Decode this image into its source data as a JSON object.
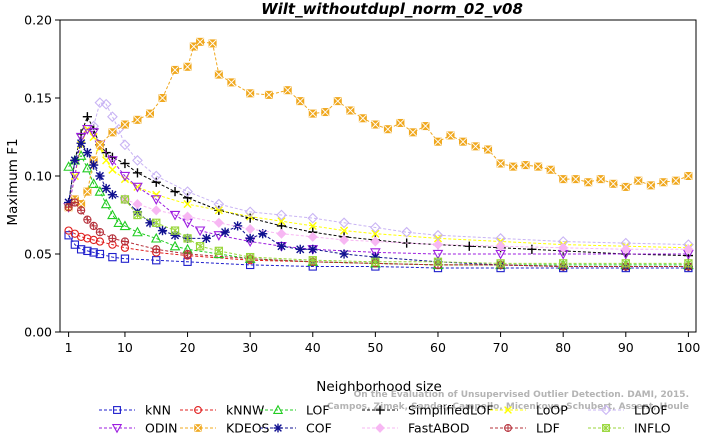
{
  "chart_data": {
    "type": "line",
    "title": "Wilt_withoutdupl_norm_02_v08",
    "xlabel": "Neighborhood size",
    "ylabel": "Maximum F1",
    "xlim": [
      1,
      100
    ],
    "ylim": [
      0,
      0.2
    ],
    "xticks": [
      1,
      10,
      20,
      30,
      40,
      50,
      60,
      70,
      80,
      90,
      100
    ],
    "yticks": [
      0.0,
      0.05,
      0.1,
      0.15,
      0.2
    ],
    "ytick_labels": [
      "0.00",
      "0.05",
      "0.10",
      "0.15",
      "0.20"
    ],
    "grid": false,
    "legend_position": "bottom",
    "watermark": [
      "Campos, Zimek, Sander, Campello, Micenkova, Schubert, Assent, Houle",
      "On the Evaluation of Unsupervised Outlier Detection. DAMI, 2015."
    ],
    "series": [
      {
        "name": "kNN",
        "color": "#1f1fcc",
        "marker": "square",
        "points": [
          [
            1,
            0.062
          ],
          [
            2,
            0.056
          ],
          [
            3,
            0.053
          ],
          [
            4,
            0.052
          ],
          [
            5,
            0.051
          ],
          [
            6,
            0.05
          ],
          [
            8,
            0.048
          ],
          [
            10,
            0.047
          ],
          [
            15,
            0.046
          ],
          [
            20,
            0.045
          ],
          [
            30,
            0.043
          ],
          [
            40,
            0.042
          ],
          [
            50,
            0.042
          ],
          [
            60,
            0.041
          ],
          [
            70,
            0.041
          ],
          [
            80,
            0.041
          ],
          [
            90,
            0.041
          ],
          [
            100,
            0.041
          ]
        ]
      },
      {
        "name": "kNNW",
        "color": "#e0201f",
        "marker": "circle",
        "points": [
          [
            1,
            0.065
          ],
          [
            2,
            0.063
          ],
          [
            3,
            0.061
          ],
          [
            4,
            0.06
          ],
          [
            5,
            0.059
          ],
          [
            6,
            0.058
          ],
          [
            8,
            0.056
          ],
          [
            10,
            0.054
          ],
          [
            15,
            0.051
          ],
          [
            20,
            0.049
          ],
          [
            30,
            0.046
          ],
          [
            40,
            0.045
          ],
          [
            50,
            0.044
          ],
          [
            60,
            0.043
          ],
          [
            70,
            0.043
          ],
          [
            80,
            0.042
          ],
          [
            90,
            0.042
          ],
          [
            100,
            0.042
          ]
        ]
      },
      {
        "name": "LOF",
        "color": "#22cc22",
        "marker": "triangle",
        "points": [
          [
            1,
            0.106
          ],
          [
            2,
            0.11
          ],
          [
            3,
            0.113
          ],
          [
            4,
            0.105
          ],
          [
            5,
            0.095
          ],
          [
            6,
            0.09
          ],
          [
            7,
            0.082
          ],
          [
            8,
            0.075
          ],
          [
            9,
            0.07
          ],
          [
            10,
            0.068
          ],
          [
            12,
            0.064
          ],
          [
            15,
            0.06
          ],
          [
            18,
            0.055
          ],
          [
            20,
            0.053
          ],
          [
            25,
            0.05
          ],
          [
            30,
            0.047
          ],
          [
            40,
            0.045
          ],
          [
            50,
            0.044
          ],
          [
            60,
            0.043
          ],
          [
            70,
            0.043
          ],
          [
            80,
            0.043
          ],
          [
            90,
            0.043
          ],
          [
            100,
            0.043
          ]
        ]
      },
      {
        "name": "SimplifiedLOF",
        "color": "#000000",
        "marker": "plus",
        "points": [
          [
            1,
            0.082
          ],
          [
            2,
            0.11
          ],
          [
            3,
            0.127
          ],
          [
            4,
            0.138
          ],
          [
            5,
            0.13
          ],
          [
            6,
            0.12
          ],
          [
            7,
            0.115
          ],
          [
            8,
            0.112
          ],
          [
            10,
            0.108
          ],
          [
            12,
            0.102
          ],
          [
            15,
            0.096
          ],
          [
            18,
            0.09
          ],
          [
            20,
            0.086
          ],
          [
            25,
            0.078
          ],
          [
            30,
            0.073
          ],
          [
            35,
            0.068
          ],
          [
            40,
            0.064
          ],
          [
            45,
            0.061
          ],
          [
            50,
            0.059
          ],
          [
            55,
            0.057
          ],
          [
            60,
            0.056
          ],
          [
            65,
            0.055
          ],
          [
            70,
            0.054
          ],
          [
            75,
            0.053
          ],
          [
            80,
            0.052
          ],
          [
            90,
            0.05
          ],
          [
            100,
            0.049
          ]
        ]
      },
      {
        "name": "LoOP",
        "color": "#ffff00",
        "marker": "x",
        "points": [
          [
            1,
            0.08
          ],
          [
            2,
            0.1
          ],
          [
            3,
            0.12
          ],
          [
            4,
            0.13
          ],
          [
            5,
            0.125
          ],
          [
            6,
            0.118
          ],
          [
            7,
            0.11
          ],
          [
            8,
            0.104
          ],
          [
            10,
            0.098
          ],
          [
            12,
            0.093
          ],
          [
            15,
            0.088
          ],
          [
            20,
            0.082
          ],
          [
            25,
            0.078
          ],
          [
            30,
            0.074
          ],
          [
            35,
            0.071
          ],
          [
            40,
            0.068
          ],
          [
            45,
            0.065
          ],
          [
            50,
            0.063
          ],
          [
            60,
            0.06
          ],
          [
            70,
            0.058
          ],
          [
            80,
            0.056
          ],
          [
            90,
            0.055
          ],
          [
            100,
            0.054
          ]
        ]
      },
      {
        "name": "LDOF",
        "color": "#c9b4f4",
        "marker": "diamond",
        "points": [
          [
            5,
            0.132
          ],
          [
            6,
            0.147
          ],
          [
            7,
            0.146
          ],
          [
            8,
            0.138
          ],
          [
            9,
            0.13
          ],
          [
            10,
            0.12
          ],
          [
            12,
            0.11
          ],
          [
            15,
            0.1
          ],
          [
            20,
            0.09
          ],
          [
            25,
            0.082
          ],
          [
            30,
            0.077
          ],
          [
            35,
            0.075
          ],
          [
            40,
            0.073
          ],
          [
            45,
            0.07
          ],
          [
            50,
            0.067
          ],
          [
            55,
            0.064
          ],
          [
            60,
            0.062
          ],
          [
            70,
            0.06
          ],
          [
            80,
            0.058
          ],
          [
            90,
            0.057
          ],
          [
            100,
            0.056
          ]
        ]
      },
      {
        "name": "ODIN",
        "color": "#9d1ee0",
        "marker": "triangle-down",
        "points": [
          [
            1,
            0.08
          ],
          [
            2,
            0.1
          ],
          [
            3,
            0.125
          ],
          [
            4,
            0.13
          ],
          [
            5,
            0.128
          ],
          [
            6,
            0.12
          ],
          [
            8,
            0.11
          ],
          [
            10,
            0.1
          ],
          [
            12,
            0.093
          ],
          [
            15,
            0.085
          ],
          [
            18,
            0.075
          ],
          [
            20,
            0.07
          ],
          [
            22,
            0.065
          ],
          [
            25,
            0.062
          ],
          [
            30,
            0.058
          ],
          [
            35,
            0.055
          ],
          [
            40,
            0.053
          ],
          [
            50,
            0.051
          ],
          [
            60,
            0.05
          ],
          [
            70,
            0.05
          ],
          [
            80,
            0.05
          ],
          [
            90,
            0.05
          ],
          [
            100,
            0.05
          ]
        ]
      },
      {
        "name": "KDEOS",
        "color": "#f0a81e",
        "marker": "square-x",
        "points": [
          [
            1,
            0.08
          ],
          [
            2,
            0.085
          ],
          [
            3,
            0.082
          ],
          [
            4,
            0.09
          ],
          [
            5,
            0.11
          ],
          [
            6,
            0.12
          ],
          [
            8,
            0.128
          ],
          [
            10,
            0.133
          ],
          [
            12,
            0.136
          ],
          [
            14,
            0.14
          ],
          [
            16,
            0.15
          ],
          [
            18,
            0.168
          ],
          [
            20,
            0.17
          ],
          [
            21,
            0.183
          ],
          [
            22,
            0.186
          ],
          [
            24,
            0.185
          ],
          [
            25,
            0.165
          ],
          [
            27,
            0.16
          ],
          [
            30,
            0.153
          ],
          [
            33,
            0.152
          ],
          [
            36,
            0.155
          ],
          [
            38,
            0.148
          ],
          [
            40,
            0.14
          ],
          [
            42,
            0.141
          ],
          [
            44,
            0.148
          ],
          [
            46,
            0.142
          ],
          [
            48,
            0.137
          ],
          [
            50,
            0.133
          ],
          [
            52,
            0.13
          ],
          [
            54,
            0.134
          ],
          [
            56,
            0.128
          ],
          [
            58,
            0.132
          ],
          [
            60,
            0.122
          ],
          [
            62,
            0.126
          ],
          [
            64,
            0.122
          ],
          [
            66,
            0.119
          ],
          [
            68,
            0.117
          ],
          [
            70,
            0.108
          ],
          [
            72,
            0.106
          ],
          [
            74,
            0.107
          ],
          [
            76,
            0.106
          ],
          [
            78,
            0.104
          ],
          [
            80,
            0.098
          ],
          [
            82,
            0.098
          ],
          [
            84,
            0.096
          ],
          [
            86,
            0.098
          ],
          [
            88,
            0.095
          ],
          [
            90,
            0.093
          ],
          [
            92,
            0.097
          ],
          [
            94,
            0.094
          ],
          [
            96,
            0.096
          ],
          [
            98,
            0.097
          ],
          [
            100,
            0.1
          ]
        ]
      },
      {
        "name": "COF",
        "color": "#101090",
        "marker": "star",
        "points": [
          [
            1,
            0.083
          ],
          [
            2,
            0.11
          ],
          [
            3,
            0.121
          ],
          [
            4,
            0.115
          ],
          [
            5,
            0.107
          ],
          [
            6,
            0.1
          ],
          [
            7,
            0.092
          ],
          [
            8,
            0.088
          ],
          [
            10,
            0.085
          ],
          [
            12,
            0.077
          ],
          [
            14,
            0.07
          ],
          [
            16,
            0.065
          ],
          [
            18,
            0.062
          ],
          [
            20,
            0.06
          ],
          [
            23,
            0.06
          ],
          [
            26,
            0.064
          ],
          [
            28,
            0.068
          ],
          [
            30,
            0.06
          ],
          [
            32,
            0.063
          ],
          [
            35,
            0.055
          ],
          [
            38,
            0.053
          ],
          [
            40,
            0.053
          ],
          [
            45,
            0.05
          ],
          [
            50,
            0.048
          ],
          [
            60,
            0.045
          ],
          [
            70,
            0.043
          ],
          [
            80,
            0.042
          ],
          [
            90,
            0.042
          ],
          [
            100,
            0.042
          ]
        ]
      },
      {
        "name": "FastABOD",
        "color": "#f7b7f3",
        "marker": "diamond-filled",
        "points": [
          [
            10,
            0.085
          ],
          [
            12,
            0.082
          ],
          [
            15,
            0.078
          ],
          [
            20,
            0.074
          ],
          [
            25,
            0.07
          ],
          [
            30,
            0.066
          ],
          [
            35,
            0.063
          ],
          [
            40,
            0.061
          ],
          [
            45,
            0.059
          ],
          [
            50,
            0.058
          ],
          [
            60,
            0.056
          ],
          [
            70,
            0.055
          ],
          [
            80,
            0.054
          ],
          [
            90,
            0.053
          ],
          [
            100,
            0.053
          ]
        ]
      },
      {
        "name": "LDF",
        "color": "#b5303a",
        "marker": "circle-plus",
        "points": [
          [
            1,
            0.08
          ],
          [
            2,
            0.083
          ],
          [
            3,
            0.078
          ],
          [
            4,
            0.072
          ],
          [
            5,
            0.068
          ],
          [
            6,
            0.064
          ],
          [
            8,
            0.06
          ],
          [
            10,
            0.058
          ],
          [
            15,
            0.053
          ],
          [
            20,
            0.05
          ],
          [
            30,
            0.047
          ],
          [
            40,
            0.045
          ],
          [
            50,
            0.044
          ],
          [
            60,
            0.043
          ],
          [
            70,
            0.043
          ],
          [
            80,
            0.042
          ],
          [
            90,
            0.042
          ],
          [
            100,
            0.042
          ]
        ]
      },
      {
        "name": "INFLO",
        "color": "#98d63a",
        "marker": "square-star",
        "points": [
          [
            10,
            0.085
          ],
          [
            12,
            0.075
          ],
          [
            15,
            0.07
          ],
          [
            18,
            0.065
          ],
          [
            20,
            0.06
          ],
          [
            22,
            0.055
          ],
          [
            25,
            0.052
          ],
          [
            30,
            0.048
          ],
          [
            40,
            0.046
          ],
          [
            50,
            0.045
          ],
          [
            60,
            0.045
          ],
          [
            70,
            0.044
          ],
          [
            80,
            0.044
          ],
          [
            90,
            0.044
          ],
          [
            100,
            0.044
          ]
        ]
      }
    ]
  }
}
